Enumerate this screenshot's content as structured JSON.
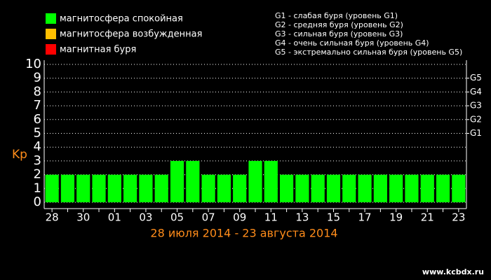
{
  "chart_data": {
    "type": "bar",
    "y_label": "Kp",
    "x_label": "28 июля 2014 - 23 августа 2014",
    "categories": [
      "28",
      null,
      "30",
      null,
      "01",
      null,
      "03",
      null,
      "05",
      null,
      "07",
      null,
      "09",
      null,
      "11",
      null,
      "13",
      null,
      "15",
      null,
      "17",
      null,
      "19",
      null,
      "21",
      null,
      "23"
    ],
    "values": [
      2,
      2,
      2,
      2,
      2,
      2,
      2,
      2,
      3,
      3,
      2,
      2,
      2,
      3,
      3,
      2,
      2,
      2,
      2,
      2,
      2,
      2,
      2,
      2,
      2,
      2,
      2
    ],
    "color": "#00ff00",
    "ylim": [
      0,
      10
    ],
    "yticks": [
      0,
      1,
      2,
      3,
      4,
      5,
      6,
      7,
      8,
      9,
      10
    ],
    "y2lim": [
      0,
      10
    ],
    "y2ticks": [
      {
        "value": 5,
        "label": "G1"
      },
      {
        "value": 6,
        "label": "G2"
      },
      {
        "value": 7,
        "label": "G3"
      },
      {
        "value": 8,
        "label": "G4"
      },
      {
        "value": 9,
        "label": "G5"
      }
    ],
    "grid": true,
    "legend": [
      {
        "label": "магнитосфера спокойная",
        "color": "#00ff00"
      },
      {
        "label": "магнитосфера возбужденная",
        "color": "#ffbf00"
      },
      {
        "label": "магнитная буря",
        "color": "#ff0000"
      }
    ],
    "storm_levels": [
      "G1 - слабая буря (уровень G1)",
      "G2 - средняя буря (уровень G2)",
      "G3 - сильная буря (уровень G3)",
      "G4 - очень сильная буря (уровень G4)",
      "G5 - экстремально сильная буря (уровень G5)"
    ],
    "watermark": "www.kcbdx.ru"
  }
}
